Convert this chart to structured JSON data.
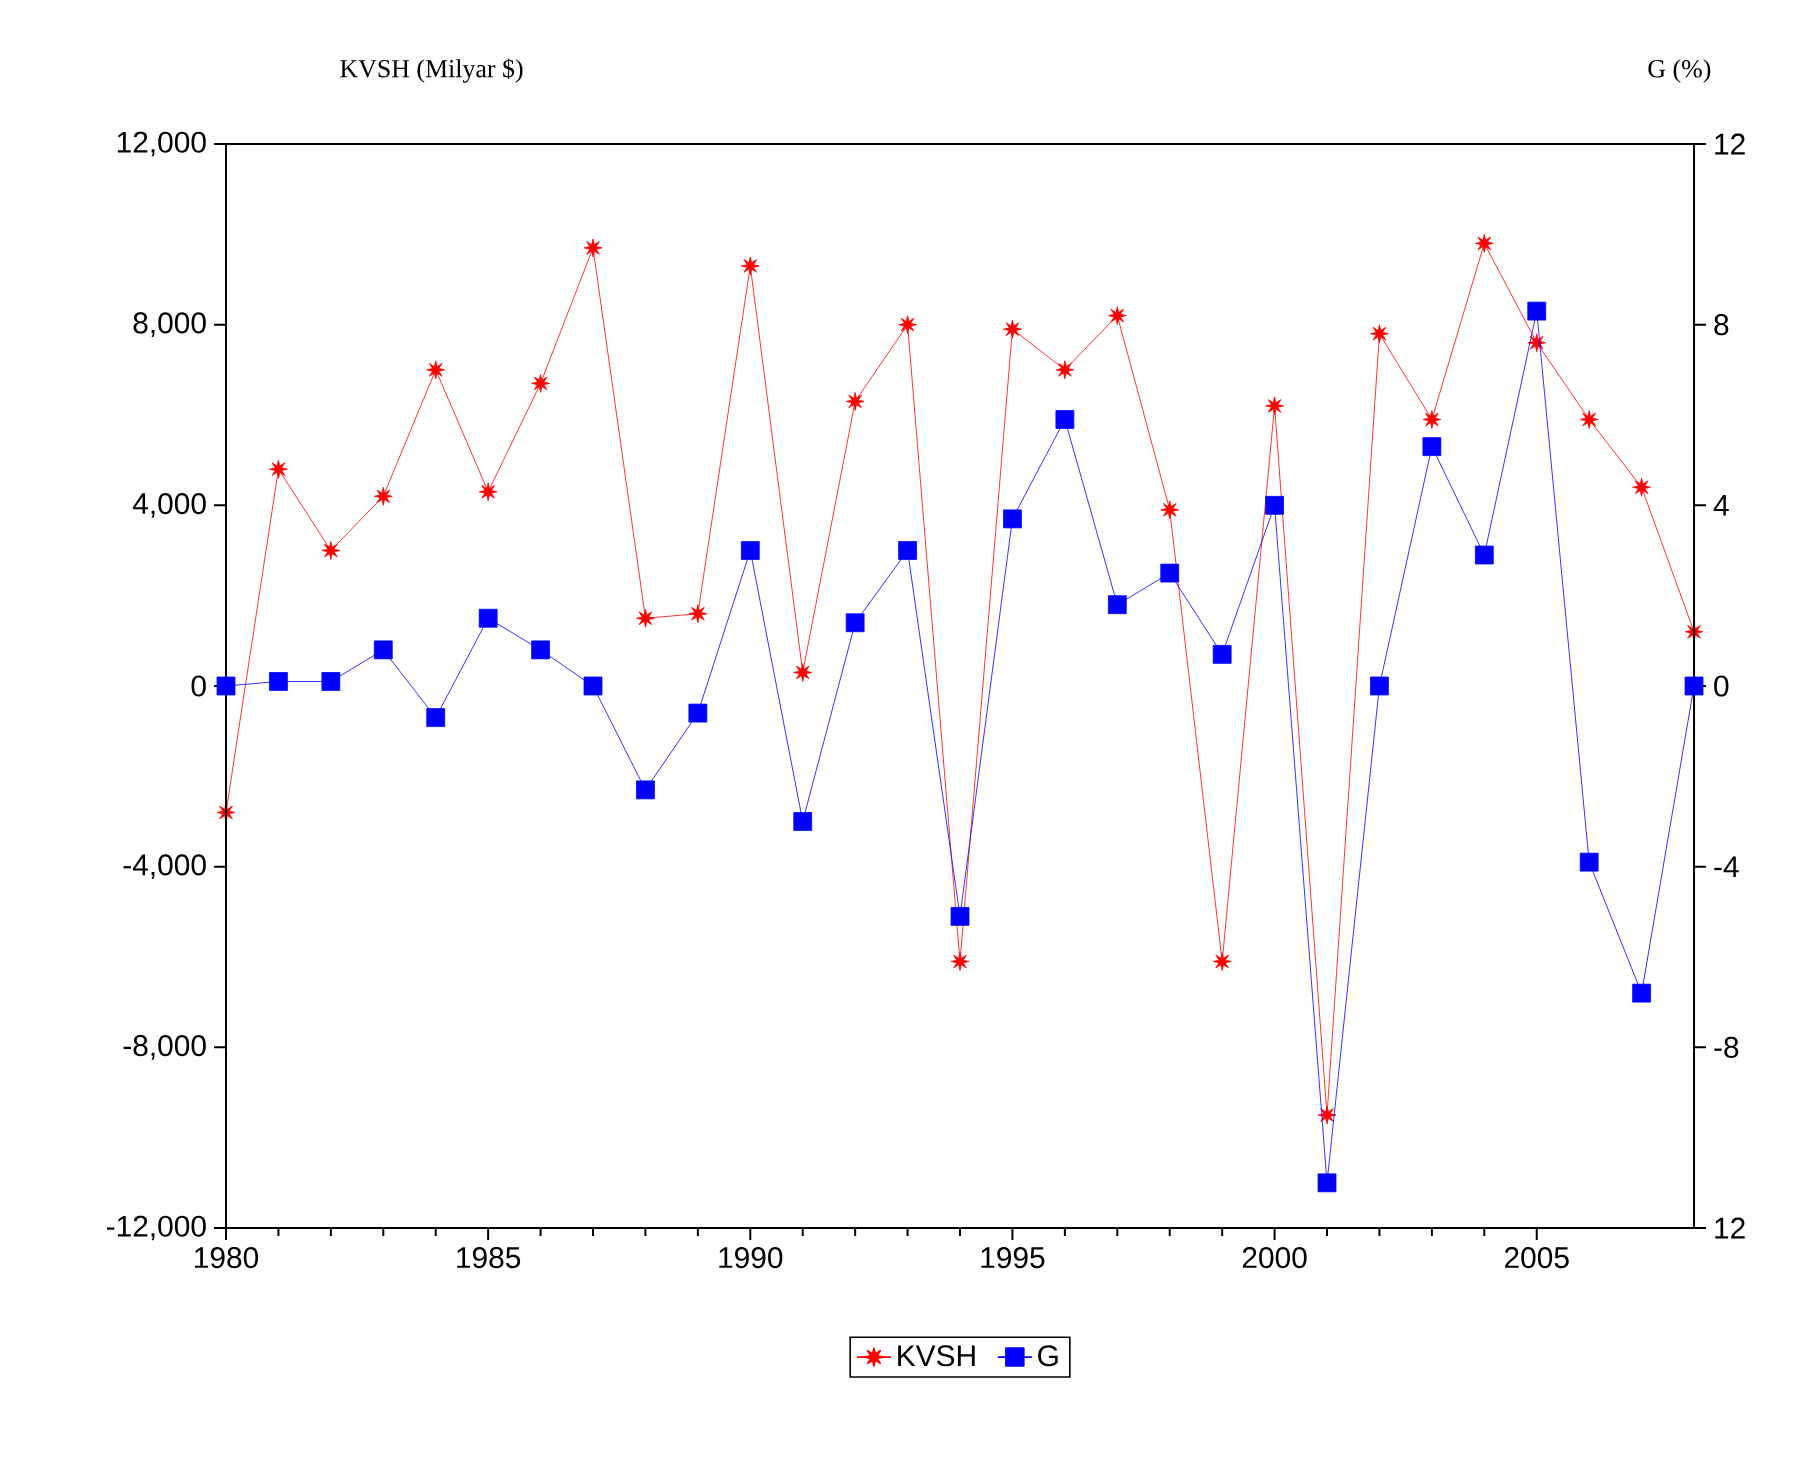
{
  "chart_data": {
    "type": "line",
    "ylabel": "KVSH (Milyar $)",
    "y2label": "G (%)",
    "x": [
      1980,
      1981,
      1982,
      1983,
      1984,
      1985,
      1986,
      1987,
      1988,
      1989,
      1990,
      1991,
      1992,
      1993,
      1994,
      1995,
      1996,
      1997,
      1998,
      1999,
      2000,
      2001,
      2002,
      2003,
      2004,
      2005,
      2006,
      2007,
      2008
    ],
    "series": [
      {
        "name": "KVSH",
        "color": "#ff0000",
        "marker": "star",
        "values": [
          -2800,
          4800,
          3000,
          4200,
          7000,
          4300,
          6700,
          9700,
          1500,
          1600,
          9300,
          300,
          6300,
          8000,
          -6100,
          7900,
          7000,
          8200,
          3900,
          -6100,
          6200,
          -9500,
          7800,
          5900,
          9800,
          7600,
          5900,
          4400,
          1200
        ]
      },
      {
        "name": "G",
        "color": "#0000ff",
        "marker": "square",
        "axis": "y2",
        "values": [
          0,
          0.1,
          0.1,
          0.8,
          -0.7,
          1.5,
          0.8,
          0,
          -2.3,
          -0.6,
          3,
          -3,
          1.4,
          3,
          -5.1,
          3.7,
          5.9,
          1.8,
          2.5,
          0.7,
          4,
          -11,
          0,
          5.3,
          2.9,
          8.3,
          -3.9,
          -6.8,
          0
        ]
      }
    ],
    "xlim": [
      1980,
      2008
    ],
    "xticks": [
      1980,
      1985,
      1990,
      1995,
      2000,
      2005
    ],
    "ylim": [
      -12000,
      12000
    ],
    "yticks": [
      {
        "value": -12000,
        "label": "-12,000"
      },
      {
        "value": -8000,
        "label": "-8,000"
      },
      {
        "value": -4000,
        "label": "-4,000"
      },
      0,
      {
        "value": 4000,
        "label": "4,000"
      },
      {
        "value": 8000,
        "label": "8,000"
      },
      {
        "value": 12000,
        "label": "12,000"
      }
    ],
    "y2lim": [
      -12,
      12
    ],
    "y2ticks": [
      {
        "value": -12,
        "label": "12"
      },
      -8,
      -4,
      0,
      4,
      8,
      12
    ],
    "legend": "bottom",
    "grid": false,
    "line_style": "solid"
  }
}
